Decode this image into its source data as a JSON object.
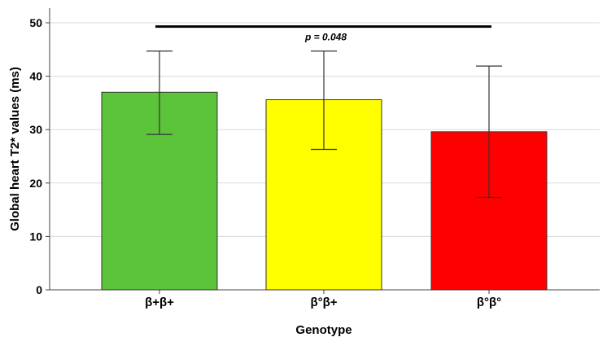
{
  "chart_data": {
    "type": "bar",
    "title": "",
    "xlabel": "Genotype",
    "ylabel": "Global heart T2* values (ms)",
    "categories": [
      "β+β+",
      "β°β+",
      "β°β°"
    ],
    "values": [
      37.0,
      35.6,
      29.6
    ],
    "error_low": [
      29.1,
      26.3,
      17.3
    ],
    "error_high": [
      44.7,
      44.7,
      41.9
    ],
    "colors": [
      "#5cc43a",
      "#ffff00",
      "#ff0000"
    ],
    "ylim": [
      0,
      50
    ],
    "yticks": [
      0,
      10,
      20,
      30,
      40,
      50
    ],
    "grid": true,
    "legend": "none",
    "significance": {
      "label": "p = 0.048",
      "from_category": 0,
      "to_category": 2,
      "y": 49.3
    }
  }
}
